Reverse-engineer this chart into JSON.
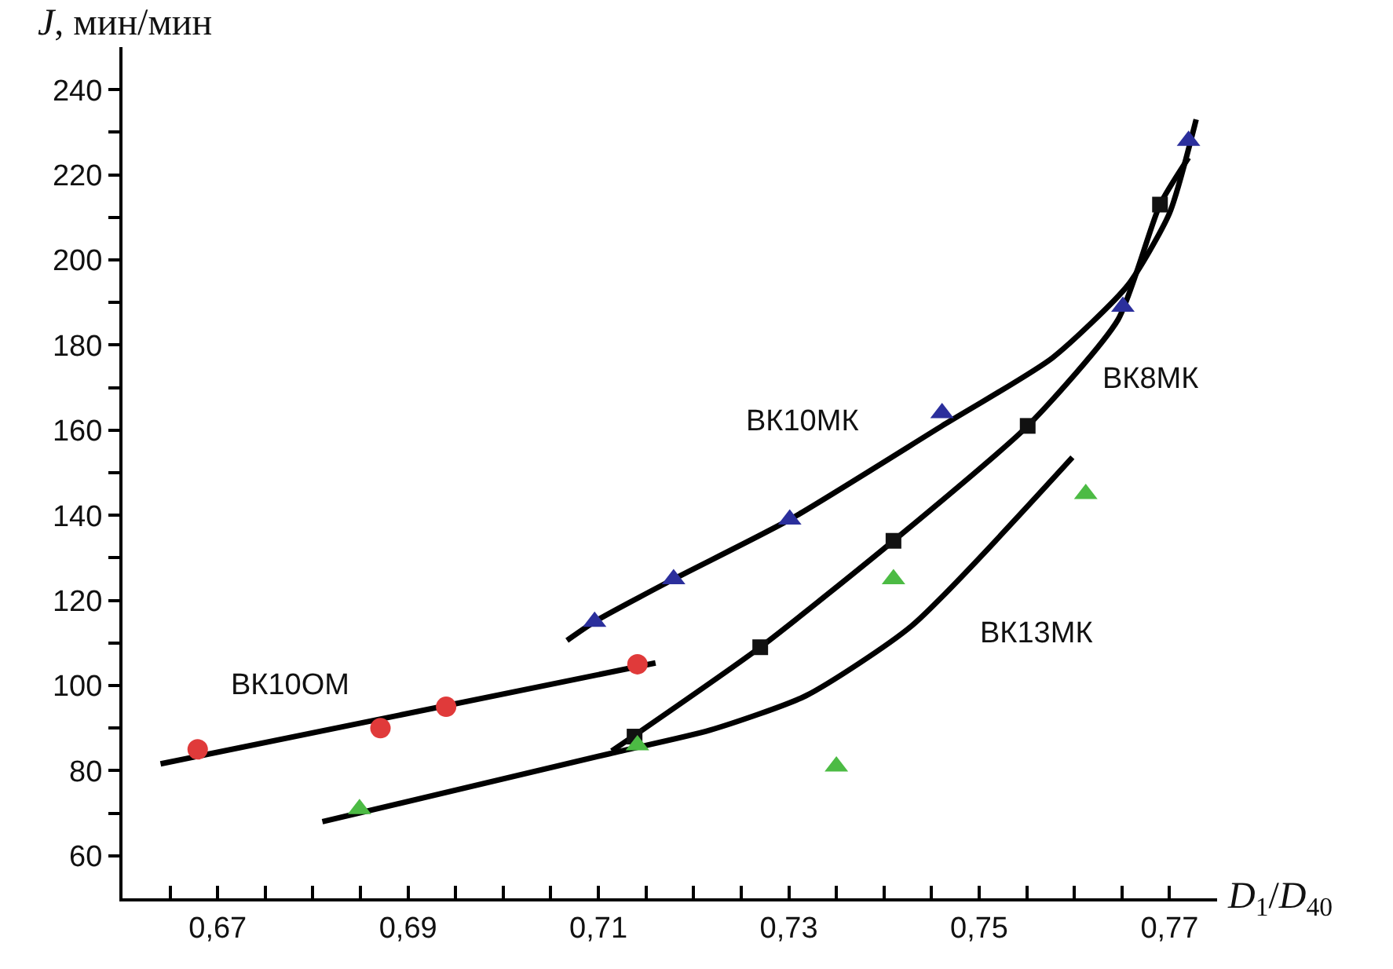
{
  "chart_data": {
    "type": "scatter",
    "xlabel": "D$_{1}$/D$_{40}$",
    "ylabel": "J, мин/мин",
    "xlim": [
      0.66,
      0.775
    ],
    "ylim": [
      50,
      250
    ],
    "xticks": [
      {
        "value": 0.665,
        "label": null
      },
      {
        "value": 0.67,
        "label": "0,67"
      },
      {
        "value": 0.675,
        "label": null
      },
      {
        "value": 0.68,
        "label": null
      },
      {
        "value": 0.685,
        "label": null
      },
      {
        "value": 0.69,
        "label": "0,69"
      },
      {
        "value": 0.695,
        "label": null
      },
      {
        "value": 0.7,
        "label": null
      },
      {
        "value": 0.705,
        "label": null
      },
      {
        "value": 0.71,
        "label": "0,71"
      },
      {
        "value": 0.715,
        "label": null
      },
      {
        "value": 0.72,
        "label": null
      },
      {
        "value": 0.725,
        "label": null
      },
      {
        "value": 0.73,
        "label": "0,73"
      },
      {
        "value": 0.735,
        "label": null
      },
      {
        "value": 0.74,
        "label": null
      },
      {
        "value": 0.745,
        "label": null
      },
      {
        "value": 0.75,
        "label": "0,75"
      },
      {
        "value": 0.755,
        "label": null
      },
      {
        "value": 0.76,
        "label": null
      },
      {
        "value": 0.765,
        "label": null
      },
      {
        "value": 0.77,
        "label": "0,77"
      }
    ],
    "yticks": [
      60,
      {
        "value": 70,
        "label": null
      },
      80,
      {
        "value": 90,
        "label": null
      },
      100,
      {
        "value": 110,
        "label": null
      },
      120,
      {
        "value": 130,
        "label": null
      },
      140,
      {
        "value": 150,
        "label": null
      },
      160,
      {
        "value": 170,
        "label": null
      },
      180,
      {
        "value": 190,
        "label": null
      },
      200,
      {
        "value": 210,
        "label": null
      },
      220,
      {
        "value": 230,
        "label": null
      },
      240
    ],
    "grid": false,
    "legend": false,
    "series": [
      {
        "name": "ВК10ОМ",
        "type": "line",
        "marker": "none",
        "color": "#000000",
        "x": [
          0.664,
          0.716
        ],
        "values": [
          81.6,
          105.3
        ]
      },
      {
        "name": "ВК10МК",
        "type": "line",
        "marker": "none",
        "color": "#000000",
        "x": [
          0.7067,
          0.7096,
          0.7179,
          0.7301,
          0.7461,
          0.7577,
          0.7656,
          0.77,
          0.7728
        ],
        "values": [
          110.6,
          115,
          125,
          139,
          161,
          177,
          194,
          211,
          233
        ]
      },
      {
        "name": "ВК8МК",
        "type": "line",
        "marker": "none",
        "color": "#000000",
        "x": [
          0.7114,
          0.727,
          0.741,
          0.7551,
          0.7646,
          0.769,
          0.772
        ],
        "values": [
          84.6,
          109,
          134,
          161,
          186,
          213,
          224
        ]
      },
      {
        "name": "ВК13МК",
        "type": "line",
        "marker": "none",
        "color": "#000000",
        "x": [
          0.681,
          0.7112,
          0.7217,
          0.7318,
          0.7429,
          0.7598
        ],
        "values": [
          68,
          84,
          89.5,
          97.6,
          114,
          153.6
        ]
      },
      {
        "marker": "circle",
        "color": "#e03a3a",
        "x": [
          0.6679,
          0.6871,
          0.694,
          0.7141
        ],
        "values": [
          85,
          90,
          95,
          105
        ]
      },
      {
        "marker": "triangle",
        "color": "#2b2f9c",
        "x": [
          0.7096,
          0.7179,
          0.7301,
          0.7461,
          0.7651,
          0.772
        ],
        "values": [
          115,
          125,
          139,
          164,
          189,
          228
        ]
      },
      {
        "marker": "square",
        "color": "#111111",
        "x": [
          0.7138,
          0.727,
          0.741,
          0.7551,
          0.769
        ],
        "values": [
          88,
          109,
          134,
          161,
          213
        ]
      },
      {
        "marker": "triangle",
        "color": "#4cbb44",
        "x": [
          0.6849,
          0.7141,
          0.735,
          0.741,
          0.7612
        ],
        "values": [
          71,
          86,
          81,
          125,
          145
        ]
      }
    ]
  }
}
